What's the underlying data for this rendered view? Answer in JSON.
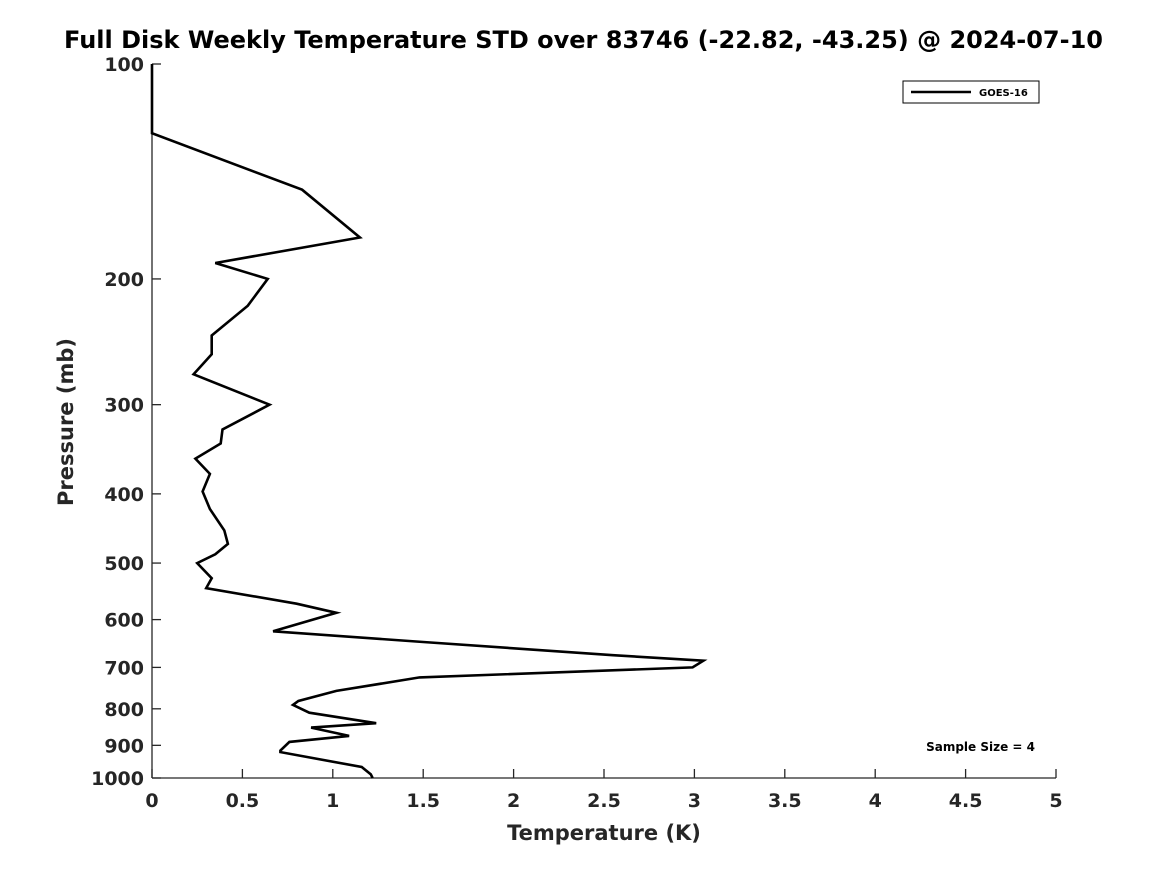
{
  "chart_data": {
    "type": "line",
    "title": "Full Disk Weekly Temperature STD over 83746 (-22.82, -43.25) @ 2024-07-10",
    "xlabel": "Temperature (K)",
    "ylabel": "Pressure (mb)",
    "xlim": [
      0,
      5
    ],
    "ylim": [
      100,
      1000
    ],
    "yscale": "log",
    "y_reversed": true,
    "x_ticks": [
      "0",
      "0.5",
      "1",
      "1.5",
      "2",
      "2.5",
      "3",
      "3.5",
      "4",
      "4.5",
      "5"
    ],
    "x_tick_values": [
      0,
      0.5,
      1,
      1.5,
      2,
      2.5,
      3,
      3.5,
      4,
      4.5,
      5
    ],
    "y_ticks": [
      "100",
      "200",
      "300",
      "400",
      "500",
      "600",
      "700",
      "800",
      "900",
      "1000"
    ],
    "y_tick_values": [
      100,
      200,
      300,
      400,
      500,
      600,
      700,
      800,
      900,
      1000
    ],
    "grid": false,
    "legend": {
      "position": "top-right",
      "entries": [
        "GOES-16"
      ]
    },
    "annotations": [
      {
        "text": "Sample Size = 4",
        "position": "bottom-right"
      }
    ],
    "series": [
      {
        "name": "GOES-16",
        "color": "#000000",
        "points": [
          [
            0,
            100
          ],
          [
            0,
            125
          ],
          [
            0.83,
            150
          ],
          [
            1.15,
            175
          ],
          [
            0.35,
            190
          ],
          [
            0.64,
            200
          ],
          [
            0.53,
            218
          ],
          [
            0.33,
            240
          ],
          [
            0.33,
            255
          ],
          [
            0.23,
            272
          ],
          [
            0.65,
            300
          ],
          [
            0.39,
            325
          ],
          [
            0.38,
            340
          ],
          [
            0.24,
            357
          ],
          [
            0.32,
            375
          ],
          [
            0.28,
            397
          ],
          [
            0.32,
            420
          ],
          [
            0.4,
            450
          ],
          [
            0.42,
            470
          ],
          [
            0.35,
            486
          ],
          [
            0.25,
            500
          ],
          [
            0.33,
            525
          ],
          [
            0.3,
            542
          ],
          [
            0.8,
            570
          ],
          [
            1.02,
            587
          ],
          [
            0.67,
            623
          ],
          [
            1.5,
            645
          ],
          [
            2.55,
            673
          ],
          [
            3.05,
            685
          ],
          [
            2.99,
            700
          ],
          [
            1.48,
            723
          ],
          [
            1.02,
            755
          ],
          [
            0.81,
            780
          ],
          [
            0.78,
            790
          ],
          [
            0.87,
            810
          ],
          [
            1.24,
            838
          ],
          [
            0.88,
            850
          ],
          [
            1.09,
            873
          ],
          [
            0.76,
            890
          ],
          [
            0.71,
            915
          ],
          [
            0.71,
            920
          ],
          [
            1.16,
            965
          ],
          [
            1.21,
            988
          ],
          [
            1.22,
            1000
          ]
        ]
      }
    ]
  }
}
